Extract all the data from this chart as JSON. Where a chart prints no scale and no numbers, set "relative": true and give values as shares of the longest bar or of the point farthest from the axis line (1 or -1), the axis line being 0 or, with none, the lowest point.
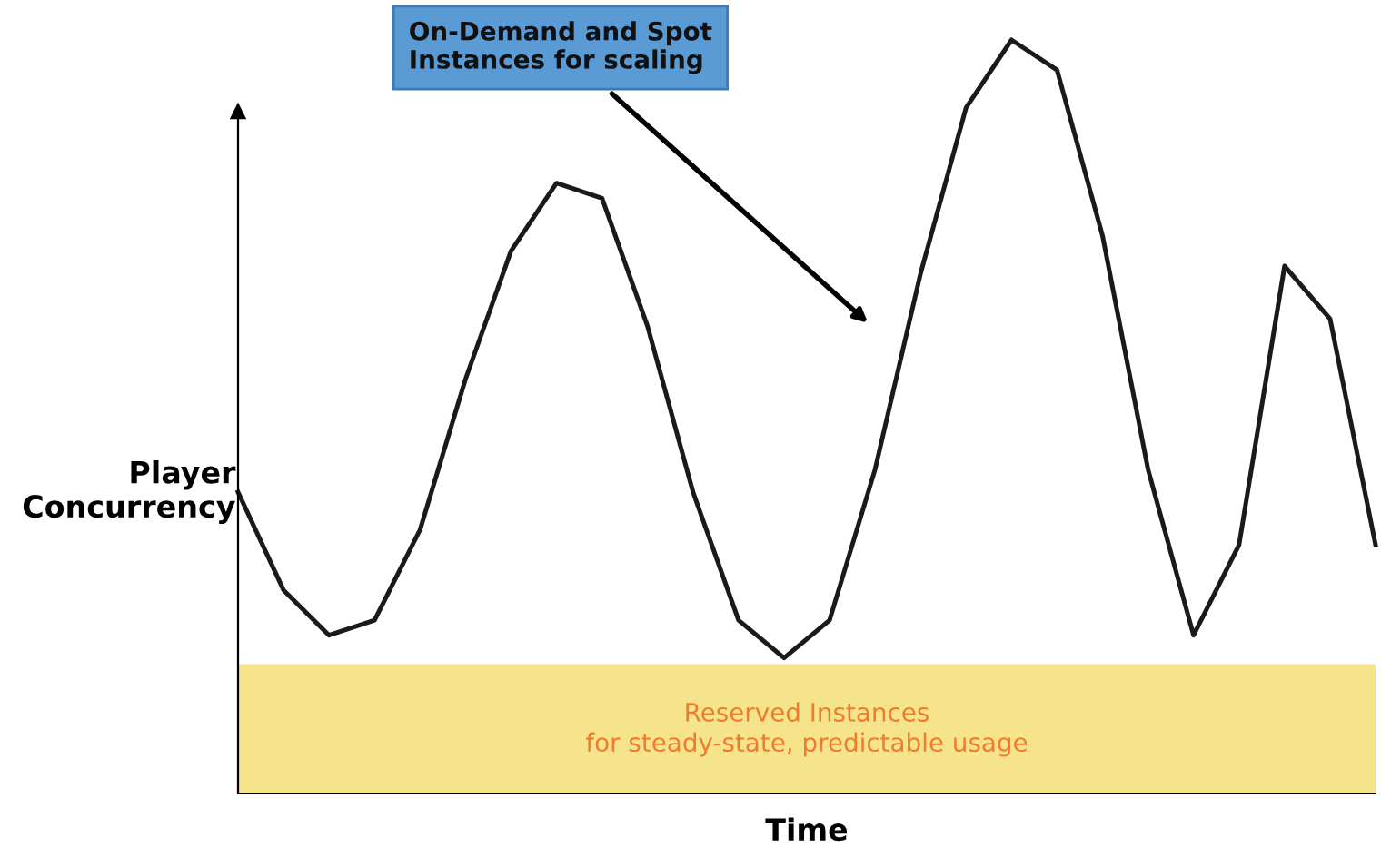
{
  "chart_data": {
    "type": "line",
    "relative": true,
    "xlabel": "Time",
    "ylabel": "Player\nConcurrency",
    "categories": [
      null,
      null,
      null,
      null,
      null,
      null,
      null,
      null,
      null,
      null,
      null,
      null,
      null,
      null,
      null,
      null,
      null,
      null,
      null,
      null,
      null,
      null,
      null,
      null,
      null,
      null
    ],
    "series": [
      {
        "color": "#1a1a1a",
        "values": [
          0.4,
          0.27,
          0.21,
          0.23,
          0.35,
          0.55,
          0.72,
          0.81,
          0.79,
          0.62,
          0.4,
          0.23,
          0.18,
          0.23,
          0.43,
          0.69,
          0.91,
          1.0,
          0.96,
          0.74,
          0.43,
          0.21,
          0.33,
          0.7,
          0.63,
          0.33
        ]
      }
    ],
    "bands": [
      {
        "axis": "y",
        "from": 0,
        "to": 0.17,
        "label": "Reserved Instances\nfor steady-state, predictable usage",
        "color": "#f5e27f"
      }
    ],
    "annotations": [
      "On-Demand and Spot\nInstances for scaling"
    ],
    "marker": "none",
    "line_style": "solid",
    "grid": false,
    "legend": false
  }
}
